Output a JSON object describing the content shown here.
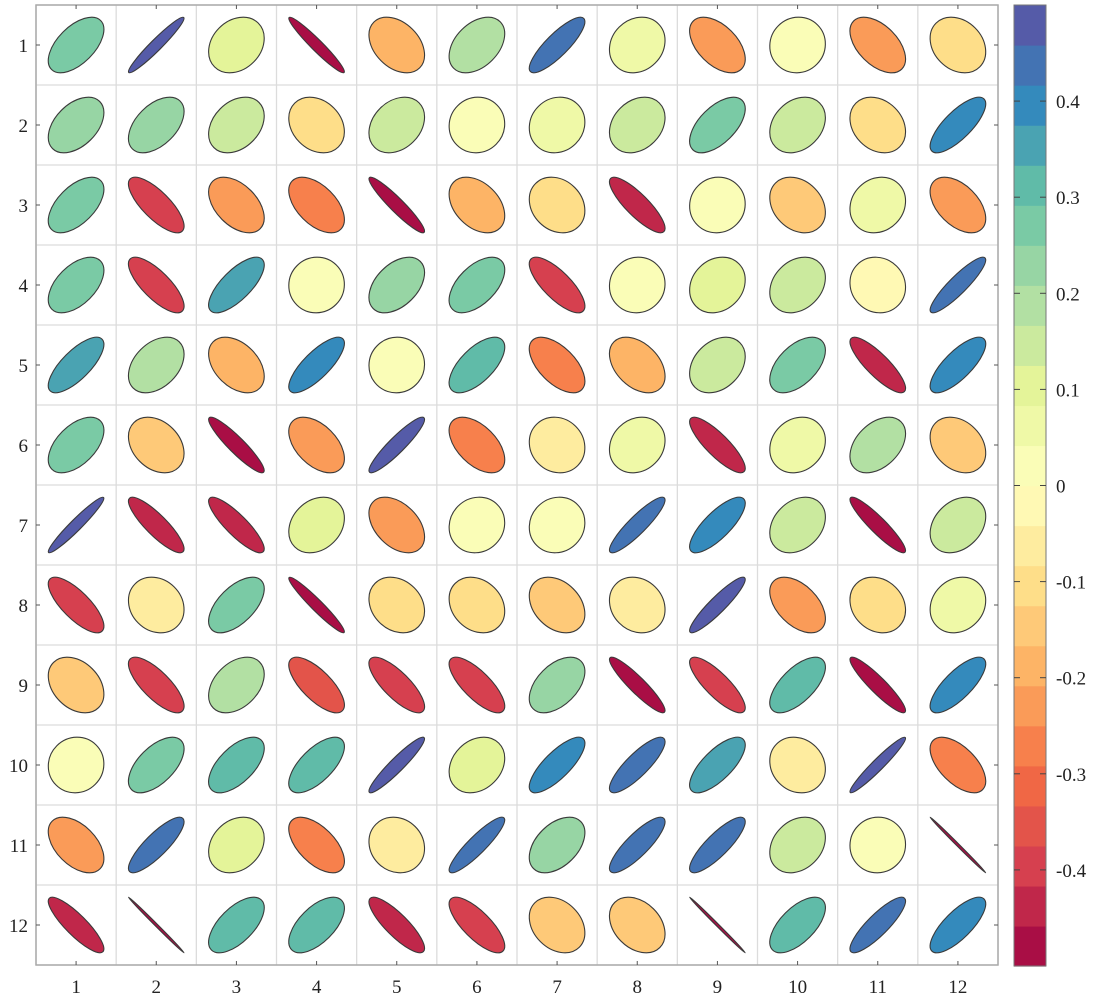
{
  "chart_data": {
    "type": "correlation-ellipse-matrix",
    "rows": [
      "1",
      "2",
      "3",
      "4",
      "5",
      "6",
      "7",
      "8",
      "9",
      "10",
      "11",
      "12"
    ],
    "columns": [
      "1",
      "2",
      "3",
      "4",
      "5",
      "6",
      "7",
      "8",
      "9",
      "10",
      "11",
      "12"
    ],
    "values": [
      [
        0.28,
        0.48,
        0.12,
        -0.48,
        -0.18,
        0.2,
        0.42,
        0.08,
        -0.25,
        0.02,
        -0.25,
        -0.12
      ],
      [
        0.22,
        0.24,
        0.16,
        -0.12,
        0.14,
        0.02,
        0.05,
        0.13,
        0.29,
        0.13,
        -0.12,
        0.38
      ],
      [
        0.28,
        -0.38,
        -0.23,
        -0.26,
        -0.47,
        -0.19,
        -0.1,
        -0.42,
        0.02,
        -0.13,
        0.07,
        -0.24
      ],
      [
        0.26,
        -0.38,
        0.36,
        0.01,
        0.22,
        0.27,
        -0.38,
        0.02,
        0.09,
        0.13,
        -0.04,
        0.45
      ],
      [
        0.37,
        0.19,
        -0.2,
        0.39,
        0.01,
        0.32,
        -0.29,
        -0.2,
        0.15,
        0.26,
        -0.42,
        0.38
      ],
      [
        0.26,
        -0.15,
        -0.46,
        -0.24,
        0.46,
        -0.26,
        -0.05,
        0.08,
        -0.42,
        0.08,
        0.2,
        -0.14
      ],
      [
        0.48,
        -0.43,
        -0.43,
        0.12,
        -0.21,
        0.04,
        0.04,
        0.45,
        0.39,
        0.14,
        -0.46,
        0.15
      ],
      [
        -0.38,
        -0.08,
        0.29,
        -0.48,
        -0.11,
        -0.11,
        -0.16,
        -0.08,
        0.46,
        -0.24,
        -0.09,
        0.08
      ],
      [
        -0.16,
        -0.38,
        0.19,
        -0.36,
        -0.39,
        -0.38,
        0.24,
        -0.46,
        -0.41,
        0.32,
        -0.46,
        0.38
      ],
      [
        0.02,
        0.29,
        0.3,
        0.33,
        0.47,
        0.12,
        0.39,
        0.42,
        0.36,
        -0.07,
        0.48,
        -0.29
      ],
      [
        -0.24,
        0.42,
        0.12,
        -0.29,
        -0.06,
        0.45,
        0.22,
        0.42,
        0.42,
        0.13,
        0.01,
        -0.5
      ],
      [
        -0.43,
        -0.5,
        0.31,
        0.3,
        -0.42,
        -0.38,
        -0.14,
        -0.16,
        -0.5,
        0.31,
        0.43,
        0.38
      ]
    ],
    "xlabel": "",
    "ylabel": "",
    "colorbar": {
      "range": [
        -0.5,
        0.5
      ],
      "ticks": [
        0.4,
        0.3,
        0.2,
        0.1,
        0,
        -0.1,
        -0.2,
        -0.3,
        -0.4
      ],
      "tick_labels": [
        "0.4",
        "0.3",
        "0.2",
        "0.1",
        "0",
        "-0.1",
        "-0.2",
        "-0.3",
        "-0.4"
      ],
      "levels": 24,
      "colormap": "Spectral"
    },
    "grid": true
  },
  "colors": {
    "ellipse_stroke": "#3a3a3a",
    "grid_line": "#dcdcdc",
    "axis_line": "#aaaaaa"
  }
}
